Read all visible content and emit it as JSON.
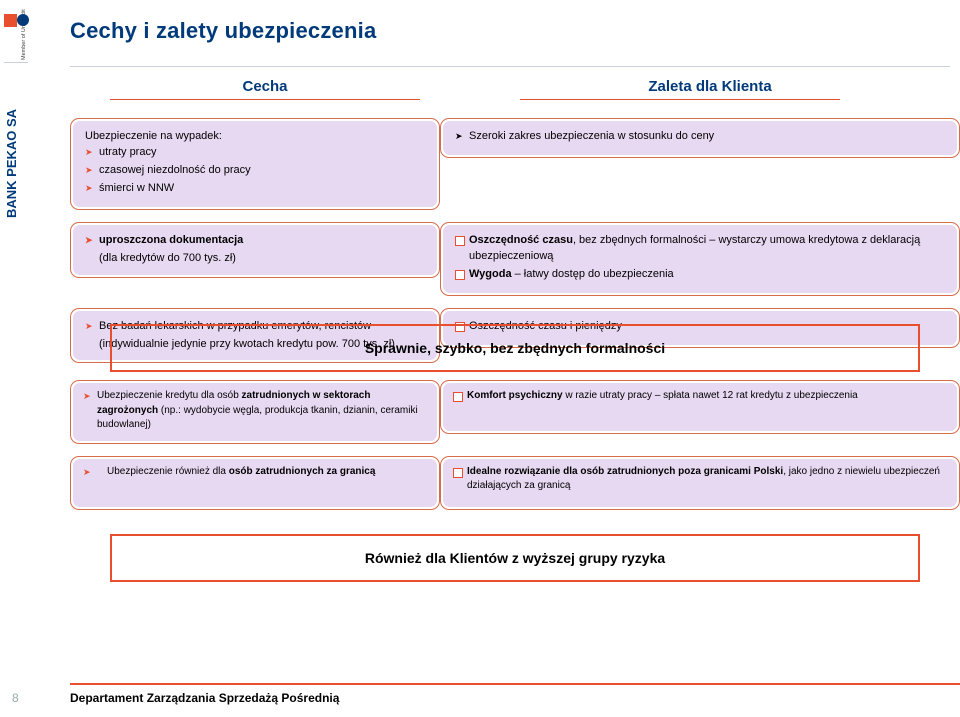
{
  "title": "Cechy i zalety ubezpieczenia",
  "header": {
    "left": "Cecha",
    "right": "Zaleta dla Klienta"
  },
  "colors": {
    "brand_navy": "#003a7a",
    "accent_orange": "#e84f2e",
    "pill_fill": "#e7d9f2"
  },
  "row1": {
    "left_head": "Ubezpieczenie na wypadek:",
    "left_items": [
      "utraty pracy",
      "czasowej niezdolność do pracy",
      "śmierci w NNW"
    ],
    "right_items": [
      "Szeroki zakres ubezpieczenia w stosunku do ceny"
    ]
  },
  "row2": {
    "left_head": "uproszczona dokumentacja",
    "left_sub": "(dla kredytów do 700 tys. zł)",
    "right_items": [
      "<strong>Oszczędność czasu</strong>, bez zbędnych formalności – wystarczy umowa kredytowa z deklaracją ubezpieczeniową",
      "<strong>Wygoda</strong> – łatwy dostęp do ubezpieczenia"
    ]
  },
  "row3": {
    "left_head": "Bez badań lekarskich w przypadku emerytów, rencistów",
    "left_sub": "(indywidualnie jedynie przy kwotach kredytu pow. 700 tys. zł)",
    "right_items": [
      "Oszczędność czasu i pieniędzy"
    ]
  },
  "midbox": "Sprawnie, szybko, bez zbędnych formalności",
  "row4": {
    "left_html": "Ubezpieczenie kredytu dla osób <strong>zatrudnionych w sektorach zagrożonych</strong> (np.: wydobycie węgla, produkcja tkanin, dzianin, ceramiki budowlanej)",
    "right_items": [
      "<strong>Komfort psychiczny</strong> w razie utraty pracy – spłata nawet 12 rat kredytu z ubezpieczenia"
    ]
  },
  "row5": {
    "left_html": "Ubezpieczenie również dla <strong>osób zatrudnionych za granicą</strong>",
    "right_items": [
      "<strong>Idealne rozwiązanie dla osób zatrudnionych poza granicami Polski</strong>, jako jedno z niewielu ubezpieczeń działających za granicą"
    ]
  },
  "lowbox": "Również dla Klientów z wyższej grupy ryzyka",
  "footer": {
    "page_number": "8",
    "department": "Departament Zarządzania Sprzedażą Pośrednią"
  },
  "logo": {
    "bank_text": "BANK PEKAO SA",
    "member_text": "Member of UniCredit Group"
  }
}
